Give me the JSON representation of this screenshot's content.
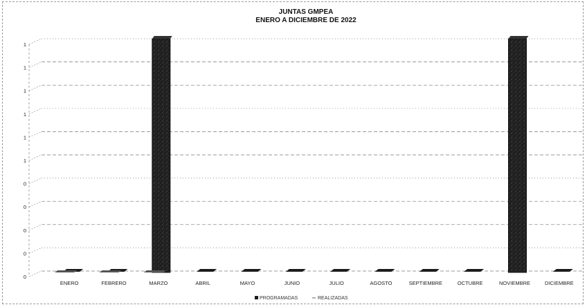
{
  "chart_data": {
    "type": "bar",
    "title": "JUNTAS GMPEA",
    "subtitle": "ENERO A DICIEMBRE DE 2022",
    "categories": [
      "ENERO",
      "FEBRERO",
      "MARZO",
      "ABRIL",
      "MAYO",
      "JUNIO",
      "JULIO",
      "AGOSTO",
      "SEPTIEMBRE",
      "OCTUBRE",
      "NOVIEMBRE",
      "DICIEMBRE"
    ],
    "series": [
      {
        "name": "PROGRAMADAS",
        "values": [
          0,
          0,
          1,
          0,
          0,
          0,
          0,
          0,
          0,
          0,
          1,
          0
        ]
      },
      {
        "name": "REALIZADAS",
        "values": [
          0,
          0,
          0,
          0,
          0,
          0,
          0,
          0,
          0,
          0,
          0,
          0
        ]
      }
    ],
    "y_tick_labels": [
      "0",
      "0",
      "0",
      "0",
      "0",
      "1",
      "1",
      "1",
      "1",
      "1",
      "1"
    ],
    "ylim": [
      0,
      1
    ],
    "grid": true,
    "legend": "bottom",
    "colors": {
      "programadas": "#1c1c1c",
      "realizadas": "#bdbdbd",
      "grid": "#777777"
    }
  }
}
